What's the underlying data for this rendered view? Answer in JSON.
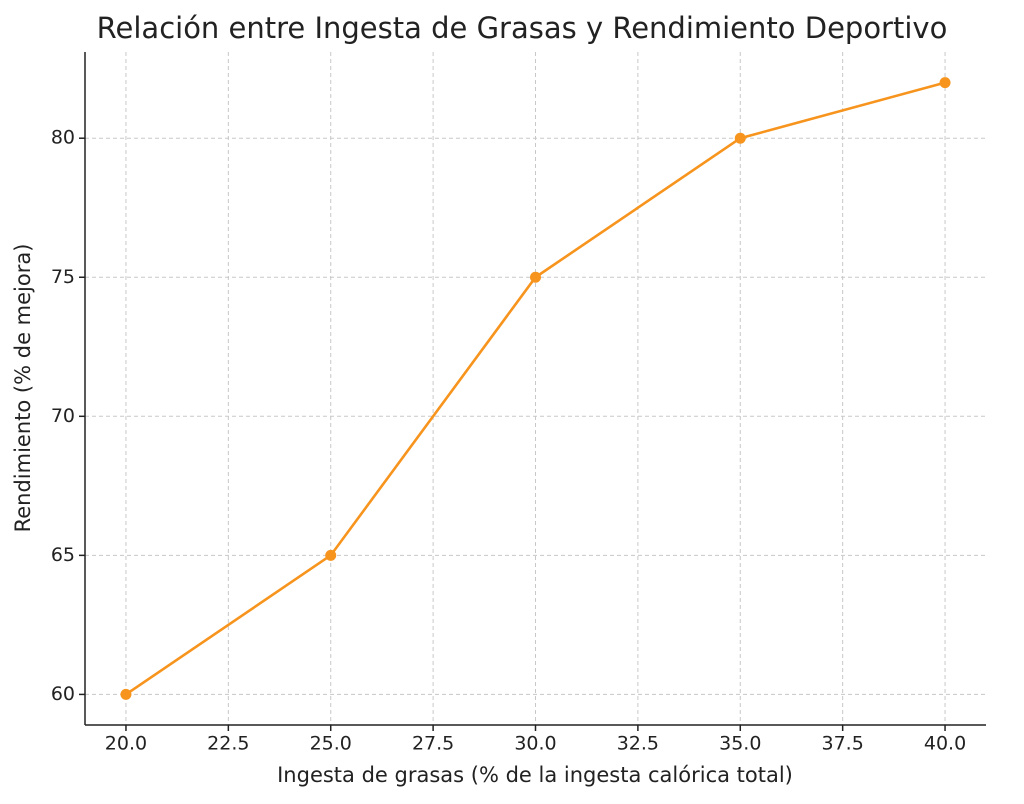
{
  "chart_data": {
    "type": "line",
    "title": "Relación entre Ingesta de Grasas y Rendimiento Deportivo",
    "x_label": "Ingesta de grasas (% de la ingesta calórica total)",
    "y_label": "Rendimiento (% de mejora)",
    "x": [
      20,
      25,
      30,
      35,
      40
    ],
    "series": [
      {
        "color": "#f7941d",
        "values": [
          60,
          65,
          75,
          80,
          82
        ]
      }
    ],
    "xlim": [
      19,
      41
    ],
    "ylim": [
      58.9,
      83.1
    ],
    "xticks": [
      {
        "value": 20,
        "label": "20.0"
      },
      {
        "value": 22.5,
        "label": "22.5"
      },
      {
        "value": 25,
        "label": "25.0"
      },
      {
        "value": 27.5,
        "label": "27.5"
      },
      {
        "value": 30,
        "label": "30.0"
      },
      {
        "value": 32.5,
        "label": "32.5"
      },
      {
        "value": 35,
        "label": "35.0"
      },
      {
        "value": 37.5,
        "label": "37.5"
      },
      {
        "value": 40,
        "label": "40.0"
      }
    ],
    "yticks": [
      60,
      65,
      70,
      75,
      80
    ],
    "grid": true
  }
}
